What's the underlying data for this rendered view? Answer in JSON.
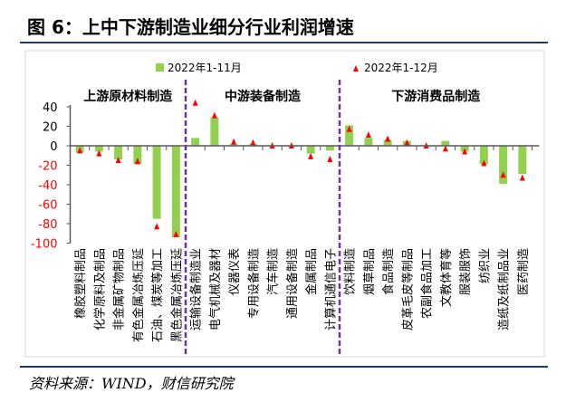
{
  "title": "图 6：上中下游制造业细分行业利润增速",
  "source": "资料来源：WIND，财信研究院",
  "colors": {
    "bar": "#92d050",
    "marker": "#ff0000",
    "divider": "#7030a0"
  },
  "chart_data": {
    "type": "bar",
    "title": "图 6：上中下游制造业细分行业利润增速",
    "ylim": [
      -100,
      40
    ],
    "yticks": [
      40,
      20,
      0,
      -20,
      -40,
      -60,
      -80,
      -100
    ],
    "legend": "top-center",
    "groups": [
      {
        "label": "上游原材料制造",
        "count": 6
      },
      {
        "label": "中游装备制造",
        "count": 8
      },
      {
        "label": "下游消费品制造",
        "count": 10
      }
    ],
    "categories": [
      "橡胶塑料制品",
      "化学原料及制品",
      "非金属矿物制品",
      "有色金属冶炼压延",
      "石油、煤炭等加工",
      "黑色金属冶炼压延",
      "运输设备制造业",
      "电气机械及器材",
      "仪器仪表",
      "专用设备制造",
      "汽车制造",
      "通用设备制造",
      "金属制品",
      "计算机通信电子",
      "饮料制造",
      "烟草制品",
      "食品制造",
      "皮革毛皮等制品",
      "农副食品加工",
      "文教体育等",
      "服装服饰",
      "纺织业",
      "造纸及纸制品业",
      "医药制造"
    ],
    "series": [
      {
        "name": "2022年1-11月",
        "type": "bar",
        "values": [
          -7,
          -6,
          -14,
          -19,
          -75,
          -94,
          8,
          29,
          2,
          2,
          0,
          -1,
          -8,
          -5,
          21,
          8,
          6,
          5,
          0,
          5,
          -6,
          -19,
          -39,
          -29
        ]
      },
      {
        "name": "2022年1-12月",
        "type": "marker",
        "values": [
          -5,
          -8,
          -15,
          -16,
          -83,
          -91,
          44,
          31,
          4,
          3,
          0,
          0,
          -11,
          -14,
          17,
          11,
          7,
          3,
          0,
          -3,
          -6,
          -18,
          -30,
          -33
        ]
      }
    ]
  }
}
